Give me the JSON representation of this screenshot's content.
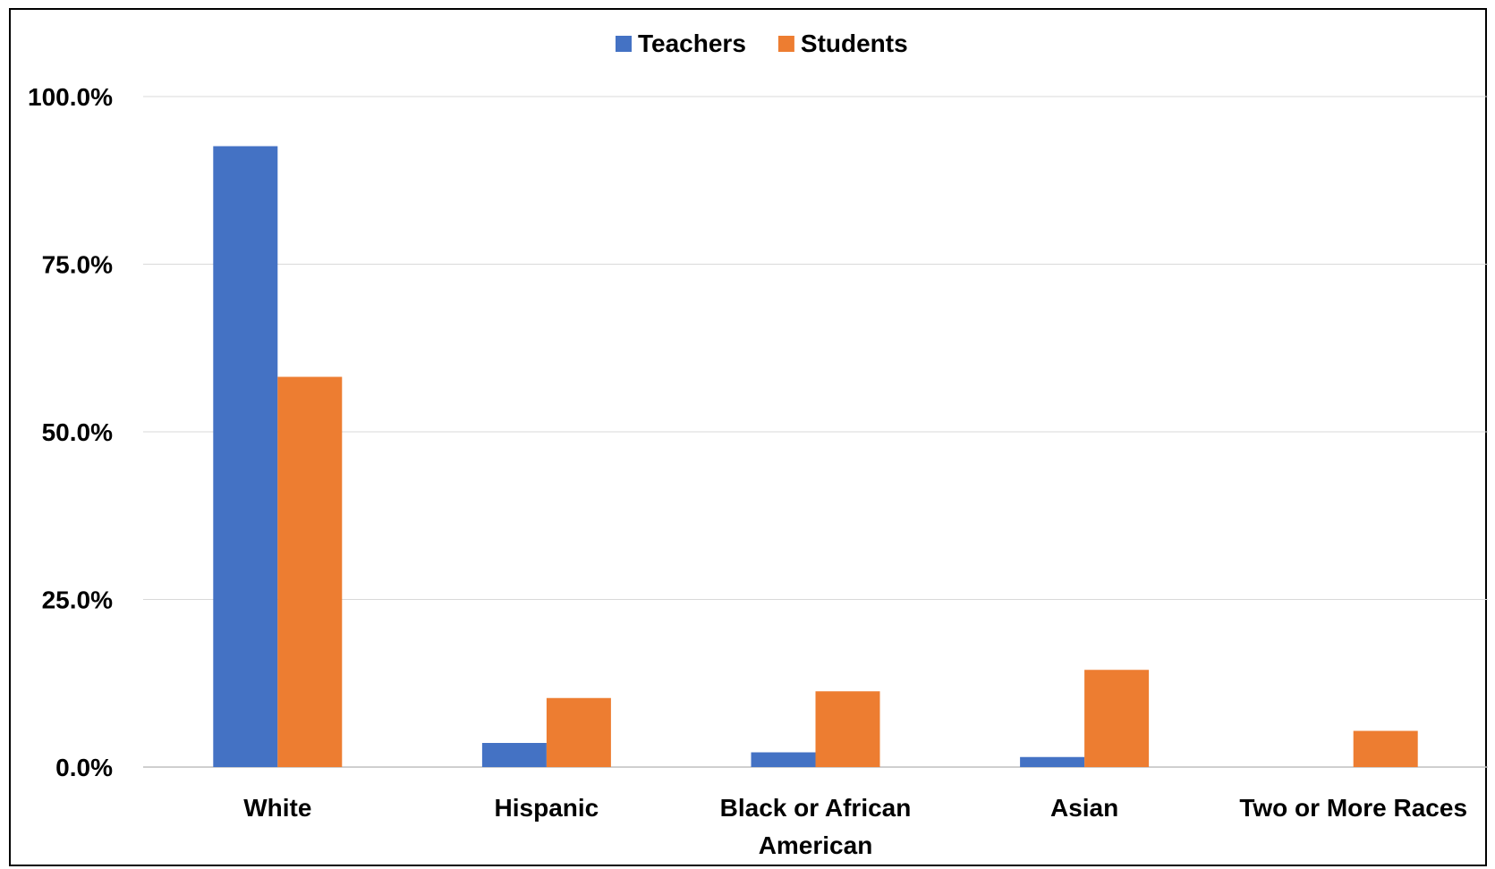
{
  "chart_data": {
    "type": "bar",
    "title": "",
    "xlabel": "",
    "ylabel": "",
    "categories": [
      [
        "White"
      ],
      [
        "Hispanic"
      ],
      [
        "Black or African",
        "American"
      ],
      [
        "Asian"
      ],
      [
        "Two or More Races"
      ]
    ],
    "series": [
      {
        "name": "Teachers",
        "color": "#4472C4",
        "values": [
          92.6,
          3.6,
          2.2,
          1.5,
          0.0
        ]
      },
      {
        "name": "Students",
        "color": "#ED7D31",
        "values": [
          58.2,
          10.3,
          11.3,
          14.5,
          5.4
        ]
      }
    ],
    "ylim": [
      0,
      100
    ],
    "yticks": [
      0,
      25,
      50,
      75,
      100
    ],
    "ytick_labels": [
      "0.0%",
      "25.0%",
      "50.0%",
      "75.0%",
      "100.0%"
    ],
    "grid": true,
    "legend_position": "top-center"
  }
}
